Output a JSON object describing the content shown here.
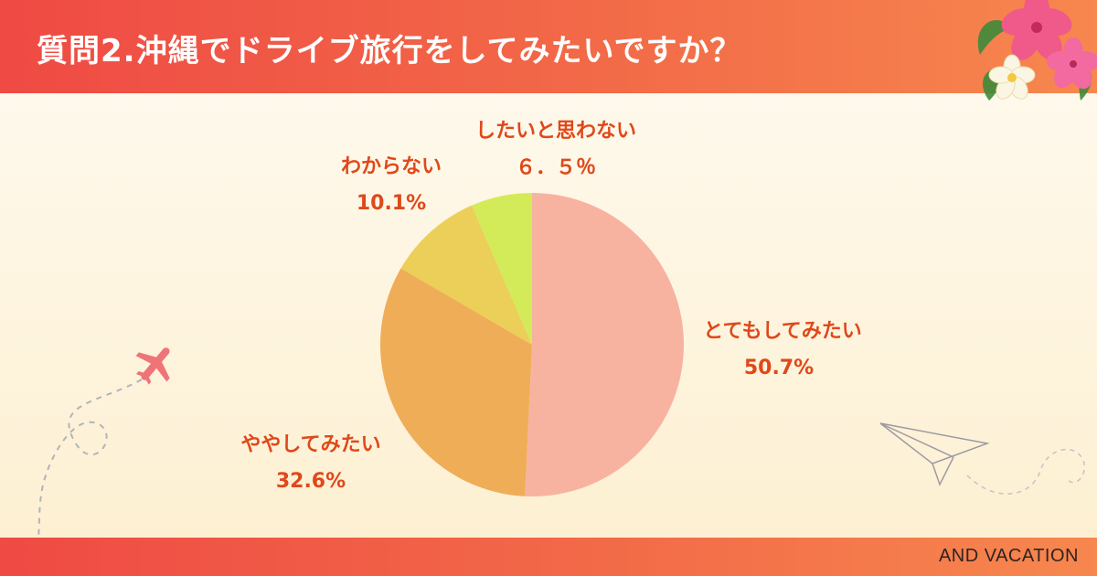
{
  "header": {
    "title": "質問2.沖縄でドライブ旅行をしてみたいですか？"
  },
  "footer": {
    "brand": "AND VACATION"
  },
  "colors": {
    "header": "#ef4a44",
    "label": "#e0481a"
  },
  "icons": [
    "hibiscus-flowers-icon",
    "airplane-icon",
    "paper-plane-icon"
  ],
  "chart_data": {
    "type": "pie",
    "title": "",
    "start_angle_deg": 0,
    "direction": "clockwise",
    "slices": [
      {
        "label": "とてもしてみたい",
        "value": 50.7,
        "value_label": "50.7%",
        "color": "#f7b3a0"
      },
      {
        "label": "ややしてみたい",
        "value": 32.6,
        "value_label": "32.6%",
        "color": "#efad57"
      },
      {
        "label": "わからない",
        "value": 10.1,
        "value_label": "10.1%",
        "color": "#ebcf58"
      },
      {
        "label": "したいと思わない",
        "value": 6.5,
        "value_label": "６．５％",
        "color": "#d3eb58"
      }
    ]
  }
}
